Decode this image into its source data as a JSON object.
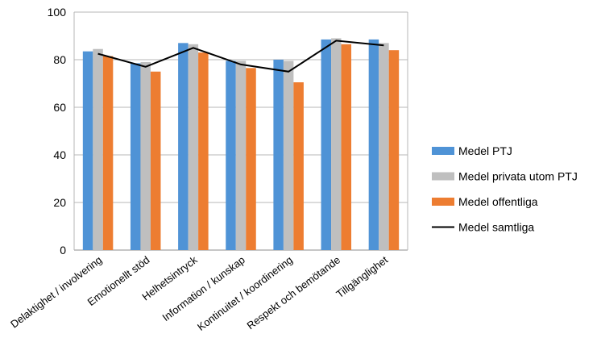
{
  "chart_data": {
    "type": "bar",
    "categories": [
      "Delaktighet / involvering",
      "Emotionellt stöd",
      "Helhetsintryck",
      "Information / kunskap",
      "Kontinuitet / koordinering",
      "Respekt och bemötande",
      "Tillgänglighet"
    ],
    "series": [
      {
        "name": "Medel PTJ",
        "kind": "bar",
        "color": "#4f93d6",
        "values": [
          83.5,
          78.5,
          87,
          79.5,
          80,
          88.5,
          88.5
        ]
      },
      {
        "name": "Medel privata utom PTJ",
        "kind": "bar",
        "color": "#bfbfbf",
        "values": [
          84.5,
          79,
          86.5,
          79.5,
          79.5,
          89,
          87
        ]
      },
      {
        "name": "Medel offentliga",
        "kind": "bar",
        "color": "#ed7d31",
        "values": [
          81.5,
          75,
          83,
          76.5,
          70.5,
          86.5,
          84
        ]
      },
      {
        "name": "Medel samtliga",
        "kind": "line",
        "color": "#000000",
        "values": [
          82.5,
          77,
          85,
          78,
          75,
          88,
          86
        ]
      }
    ],
    "yticks": [
      0,
      20,
      40,
      60,
      80,
      100
    ],
    "ylim": [
      0,
      100
    ],
    "grid": true,
    "legend_position": "right",
    "title": "",
    "xlabel": "",
    "ylabel": ""
  }
}
